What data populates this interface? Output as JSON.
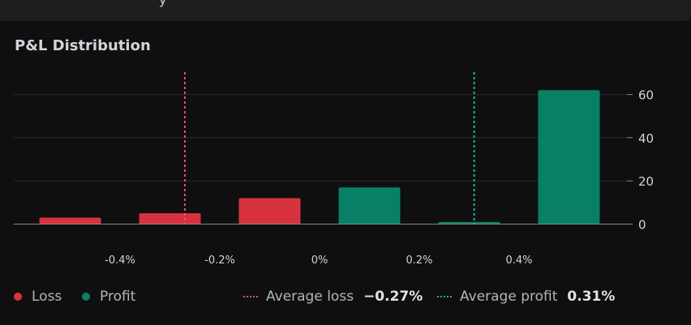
{
  "panel": {
    "title": "P&L Distribution"
  },
  "colors": {
    "loss": "#d9323f",
    "profit": "#078066",
    "grid": "#2a2a2a",
    "axis": "#8a8a8a",
    "background": "#0f0f0f"
  },
  "chart_data": {
    "type": "bar",
    "title": "P&L Distribution",
    "xlabel": "",
    "ylabel": "",
    "x_tick_labels": [
      "-0.4%",
      "-0.2%",
      "0%",
      "0.2%",
      "0.4%"
    ],
    "x_tick_values": [
      -0.4,
      -0.2,
      0.0,
      0.2,
      0.4
    ],
    "y_ticks": [
      0,
      20,
      40,
      60
    ],
    "ylim": [
      0,
      70
    ],
    "bins": [
      {
        "center": -0.5,
        "value": 3,
        "kind": "loss"
      },
      {
        "center": -0.3,
        "value": 5,
        "kind": "loss"
      },
      {
        "center": -0.1,
        "value": 12,
        "kind": "loss"
      },
      {
        "center": 0.1,
        "value": 17,
        "kind": "profit"
      },
      {
        "center": 0.3,
        "value": 1,
        "kind": "profit"
      },
      {
        "center": 0.5,
        "value": 62,
        "kind": "profit"
      }
    ],
    "average_loss": -0.27,
    "average_profit": 0.31
  },
  "legend": {
    "loss_label": "Loss",
    "profit_label": "Profit",
    "avg_loss_label": "Average loss",
    "avg_loss_value": "−0.27%",
    "avg_profit_label": "Average profit",
    "avg_profit_value": "0.31%"
  }
}
